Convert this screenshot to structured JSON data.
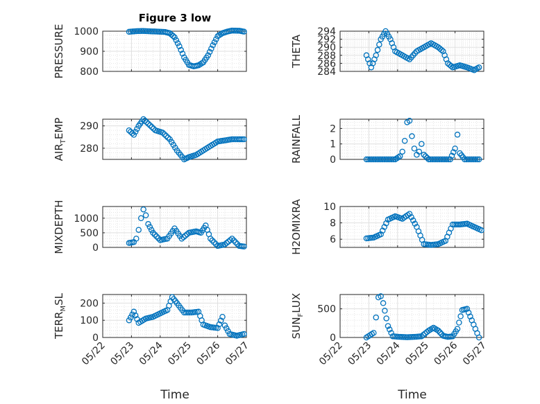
{
  "figure": {
    "title": "Figure 3 low",
    "xlabel": "Time"
  },
  "x_ticks": [
    "05/22",
    "05/23",
    "05/24",
    "05/25",
    "05/26",
    "05/27"
  ],
  "colors": {
    "marker": "#0072BD",
    "axis": "#262626",
    "grid": "#DFDFDF"
  },
  "chart_data": [
    {
      "type": "scatter",
      "ylabel_main": "PRESSURE",
      "ylabel_sub": "",
      "ylabel_rest": "",
      "ylim": [
        800,
        1000
      ],
      "yticks": [
        800,
        900,
        1000
      ],
      "grid": true,
      "x": [
        "05/22 22:00",
        "05/23 04:00",
        "05/23 10:00",
        "05/23 16:00",
        "05/23 22:00",
        "05/24 04:00",
        "05/24 08:00",
        "05/24 12:00",
        "05/24 16:00",
        "05/24 20:00",
        "05/25 00:00",
        "05/25 04:00",
        "05/25 08:00",
        "05/25 12:00",
        "05/25 16:00",
        "05/25 20:00",
        "05/26 00:00",
        "05/26 04:00",
        "05/26 08:00",
        "05/26 12:00",
        "05/26 18:00",
        "05/26 22:00"
      ],
      "y": [
        997,
        1000,
        1001,
        999,
        998,
        996,
        990,
        970,
        925,
        870,
        832,
        825,
        830,
        845,
        880,
        930,
        975,
        990,
        998,
        1003,
        1002,
        998
      ]
    },
    {
      "type": "scatter",
      "ylabel_main": "THETA",
      "ylabel_sub": "",
      "ylabel_rest": "",
      "ylim": [
        284,
        294
      ],
      "yticks": [
        284,
        286,
        288,
        290,
        292,
        294
      ],
      "grid": true,
      "x": [
        "05/22 22:00",
        "05/23 02:00",
        "05/23 06:00",
        "05/23 10:00",
        "05/23 14:00",
        "05/23 18:00",
        "05/23 22:00",
        "05/24 04:00",
        "05/24 10:00",
        "05/24 16:00",
        "05/24 22:00",
        "05/25 04:00",
        "05/25 10:00",
        "05/25 14:00",
        "05/25 18:00",
        "05/25 22:00",
        "05/26 04:00",
        "05/26 10:00",
        "05/26 16:00",
        "05/26 20:00"
      ],
      "y": [
        288,
        285,
        288,
        292,
        294,
        292,
        289,
        288,
        287,
        289,
        290,
        291,
        290,
        289,
        286,
        285,
        285.5,
        285,
        284.3,
        285
      ]
    },
    {
      "type": "scatter",
      "ylabel_main": "AIR",
      "ylabel_sub": "T",
      "ylabel_rest": "EMP",
      "ylim": [
        275,
        293
      ],
      "yticks": [
        280,
        290
      ],
      "grid": true,
      "x": [
        "05/22 22:00",
        "05/23 02:00",
        "05/23 06:00",
        "05/23 10:00",
        "05/23 14:00",
        "05/23 20:00",
        "05/24 02:00",
        "05/24 08:00",
        "05/24 14:00",
        "05/24 20:00",
        "05/25 00:00",
        "05/25 06:00",
        "05/25 12:00",
        "05/25 18:00",
        "05/26 00:00",
        "05/26 06:00",
        "05/26 12:00",
        "05/26 18:00",
        "05/26 22:00"
      ],
      "y": [
        288,
        286,
        290,
        293,
        291,
        288,
        287,
        284,
        279,
        275,
        276,
        277,
        279,
        281,
        283,
        283.5,
        284,
        284,
        284
      ]
    },
    {
      "type": "scatter",
      "ylabel_main": "RAINFALL",
      "ylabel_sub": "",
      "ylabel_rest": "",
      "ylim": [
        0,
        2.6
      ],
      "yticks": [
        0,
        1,
        2
      ],
      "grid": true,
      "x": [
        "05/22 22:00",
        "05/23 04:00",
        "05/23 10:00",
        "05/23 16:00",
        "05/23 22:00",
        "05/24 02:00",
        "05/24 04:00",
        "05/24 06:00",
        "05/24 08:00",
        "05/24 10:00",
        "05/24 12:00",
        "05/24 14:00",
        "05/24 16:00",
        "05/24 18:00",
        "05/24 20:00",
        "05/24 22:00",
        "05/25 02:00",
        "05/25 08:00",
        "05/25 14:00",
        "05/25 20:00",
        "05/26 00:00",
        "05/26 02:00",
        "05/26 04:00",
        "05/26 08:00",
        "05/26 14:00",
        "05/26 20:00"
      ],
      "y": [
        0,
        0,
        0,
        0,
        0,
        0.2,
        0.5,
        1.2,
        2.4,
        2.5,
        1.5,
        0.7,
        0.3,
        0.5,
        1.0,
        0.3,
        0,
        0,
        0,
        0,
        0.7,
        1.6,
        0.4,
        0,
        0,
        0
      ]
    },
    {
      "type": "scatter",
      "ylabel_main": "MIXDEPTH",
      "ylabel_sub": "",
      "ylabel_rest": "",
      "ylim": [
        0,
        1400
      ],
      "yticks": [
        0,
        500,
        1000
      ],
      "grid": true,
      "x": [
        "05/22 22:00",
        "05/23 02:00",
        "05/23 04:00",
        "05/23 06:00",
        "05/23 08:00",
        "05/23 10:00",
        "05/23 12:00",
        "05/23 14:00",
        "05/23 18:00",
        "05/24 00:00",
        "05/24 06:00",
        "05/24 12:00",
        "05/24 18:00",
        "05/25 00:00",
        "05/25 06:00",
        "05/25 10:00",
        "05/25 14:00",
        "05/25 18:00",
        "05/26 00:00",
        "05/26 06:00",
        "05/26 12:00",
        "05/26 18:00",
        "05/26 22:00"
      ],
      "y": [
        150,
        180,
        300,
        600,
        1000,
        1300,
        1100,
        800,
        500,
        250,
        300,
        650,
        300,
        500,
        550,
        500,
        750,
        300,
        50,
        100,
        300,
        50,
        30
      ]
    },
    {
      "type": "scatter",
      "ylabel_main": "H2OMIXRA",
      "ylabel_sub": "",
      "ylabel_rest": "",
      "ylim": [
        5,
        10
      ],
      "yticks": [
        6,
        8,
        10
      ],
      "grid": true,
      "x": [
        "05/22 22:00",
        "05/23 04:00",
        "05/23 10:00",
        "05/23 16:00",
        "05/23 22:00",
        "05/24 04:00",
        "05/24 10:00",
        "05/24 16:00",
        "05/24 22:00",
        "05/25 04:00",
        "05/25 10:00",
        "05/25 16:00",
        "05/25 22:00",
        "05/26 04:00",
        "05/26 10:00",
        "05/26 16:00",
        "05/26 22:00"
      ],
      "y": [
        6.1,
        6.2,
        6.6,
        8.4,
        8.8,
        8.5,
        9.1,
        7.5,
        5.4,
        5.3,
        5.4,
        5.8,
        7.8,
        7.8,
        7.9,
        7.5,
        7.1
      ]
    },
    {
      "type": "scatter",
      "ylabel_main": "TERR",
      "ylabel_sub": "M",
      "ylabel_rest": "SL",
      "ylim": [
        0,
        250
      ],
      "yticks": [
        0,
        100,
        200
      ],
      "grid": true,
      "x": [
        "05/22 22:00",
        "05/23 02:00",
        "05/23 06:00",
        "05/23 12:00",
        "05/23 18:00",
        "05/24 00:00",
        "05/24 06:00",
        "05/24 10:00",
        "05/24 14:00",
        "05/24 20:00",
        "05/25 02:00",
        "05/25 08:00",
        "05/25 12:00",
        "05/25 18:00",
        "05/26 00:00",
        "05/26 04:00",
        "05/26 06:00",
        "05/26 10:00",
        "05/26 16:00",
        "05/26 22:00"
      ],
      "y": [
        100,
        150,
        85,
        110,
        120,
        140,
        160,
        235,
        200,
        145,
        145,
        150,
        75,
        60,
        55,
        120,
        70,
        20,
        10,
        20
      ]
    },
    {
      "type": "scatter",
      "ylabel_main": "SUN",
      "ylabel_sub": "F",
      "ylabel_rest": "LUX",
      "ylim": [
        0,
        750
      ],
      "yticks": [
        0,
        500
      ],
      "grid": true,
      "x": [
        "05/22 22:00",
        "05/23 04:00",
        "05/23 06:00",
        "05/23 08:00",
        "05/23 10:00",
        "05/23 12:00",
        "05/23 16:00",
        "05/23 20:00",
        "05/24 02:00",
        "05/24 08:00",
        "05/24 14:00",
        "05/24 20:00",
        "05/25 02:00",
        "05/25 06:00",
        "05/25 10:00",
        "05/25 14:00",
        "05/25 18:00",
        "05/25 22:00",
        "05/26 02:00",
        "05/26 06:00",
        "05/26 10:00",
        "05/26 14:00",
        "05/26 20:00"
      ],
      "y": [
        0,
        80,
        350,
        700,
        720,
        600,
        200,
        20,
        10,
        5,
        10,
        20,
        120,
        170,
        120,
        30,
        10,
        20,
        150,
        480,
        500,
        300,
        0
      ]
    }
  ]
}
